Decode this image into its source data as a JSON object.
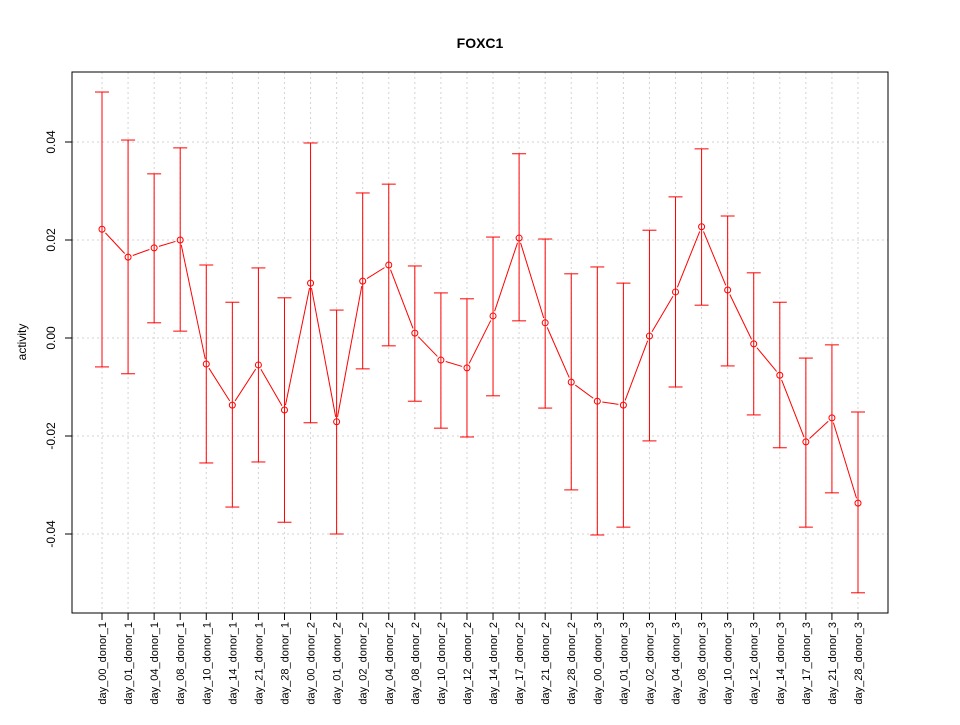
{
  "chart_data": {
    "type": "line",
    "title": "FOXC1",
    "xlabel": "",
    "ylabel": "activity",
    "ylim": [
      -0.056,
      0.054
    ],
    "yticks": [
      -0.04,
      -0.02,
      0.0,
      0.02,
      0.04
    ],
    "ytick_labels": [
      "-0.04",
      "-0.02",
      "0.00",
      "0.02",
      "0.04"
    ],
    "grid": true,
    "color": "#ff0000",
    "categories": [
      "day_00_donor_1",
      "day_01_donor_1",
      "day_04_donor_1",
      "day_08_donor_1",
      "day_10_donor_1",
      "day_14_donor_1",
      "day_21_donor_1",
      "day_28_donor_1",
      "day_00_donor_2",
      "day_01_donor_2",
      "day_02_donor_2",
      "day_04_donor_2",
      "day_08_donor_2",
      "day_10_donor_2",
      "day_12_donor_2",
      "day_14_donor_2",
      "day_17_donor_2",
      "day_21_donor_2",
      "day_28_donor_2",
      "day_00_donor_3",
      "day_01_donor_3",
      "day_02_donor_3",
      "day_04_donor_3",
      "day_08_donor_3",
      "day_10_donor_3",
      "day_12_donor_3",
      "day_14_donor_3",
      "day_17_donor_3",
      "day_21_donor_3",
      "day_28_donor_3"
    ],
    "values": [
      0.0222,
      0.0165,
      0.0184,
      0.02,
      -0.0053,
      -0.0137,
      -0.0055,
      -0.0147,
      0.0112,
      -0.0171,
      0.0116,
      0.0149,
      0.001,
      -0.0045,
      -0.0061,
      0.0045,
      0.0204,
      0.0031,
      -0.009,
      -0.0129,
      -0.0137,
      0.0004,
      0.0094,
      0.0227,
      0.0098,
      -0.0012,
      -0.0076,
      -0.0212,
      -0.0163,
      -0.0337
    ],
    "upper": [
      0.0502,
      0.0404,
      0.0335,
      0.0388,
      0.0149,
      0.0073,
      0.0143,
      0.0082,
      0.0398,
      0.0057,
      0.0296,
      0.0314,
      0.0147,
      0.0092,
      0.008,
      0.0206,
      0.0376,
      0.0202,
      0.0131,
      0.0145,
      0.0112,
      0.022,
      0.0288,
      0.0386,
      0.0249,
      0.0133,
      0.0073,
      -0.0041,
      -0.0014,
      -0.0151
    ],
    "lower": [
      -0.0059,
      -0.0073,
      0.0031,
      0.0014,
      -0.0255,
      -0.0345,
      -0.0253,
      -0.0376,
      -0.0173,
      -0.04,
      -0.0063,
      -0.0016,
      -0.0129,
      -0.0184,
      -0.0202,
      -0.0118,
      0.0035,
      -0.0143,
      -0.031,
      -0.0402,
      -0.0386,
      -0.021,
      -0.01,
      0.0067,
      -0.0057,
      -0.0157,
      -0.0224,
      -0.0386,
      -0.0316,
      -0.052
    ]
  }
}
